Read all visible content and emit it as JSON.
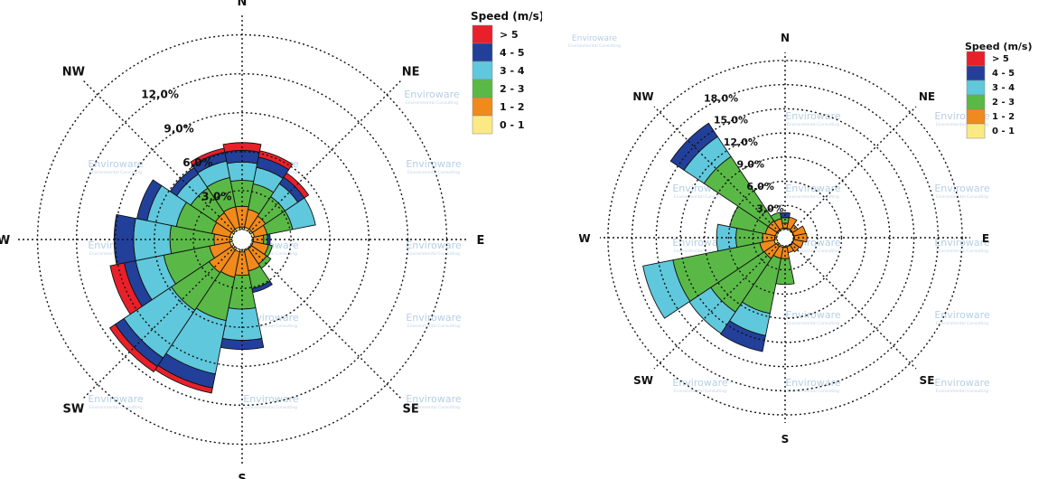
{
  "chart_data": [
    {
      "type": "wind-rose",
      "directions": [
        "N",
        "NNE",
        "NE",
        "ENE",
        "E",
        "ESE",
        "SE",
        "SSE",
        "S",
        "SSW",
        "SW",
        "WSW",
        "W",
        "WNW",
        "NW",
        "NNW"
      ],
      "direction_labels": [
        "N",
        "NE",
        "E",
        "SE",
        "S",
        "SW",
        "W",
        "NW"
      ],
      "ring_labels": [
        "3,0%",
        "6,0%",
        "9,0%",
        "12,0%"
      ],
      "ring_values": [
        3,
        6,
        9,
        12
      ],
      "r_max_percent": 16.5,
      "legend": {
        "title": "Speed (m/s)",
        "bins": [
          {
            "label": "> 5",
            "color": "#e8202a"
          },
          {
            "label": "4 - 5",
            "color": "#22409a"
          },
          {
            "label": "3 - 4",
            "color": "#5fc8dc"
          },
          {
            "label": "2 - 3",
            "color": "#5ab946"
          },
          {
            "label": "1 - 2",
            "color": "#f08a1c"
          },
          {
            "label": "0 - 1",
            "color": "#fbe983"
          }
        ]
      },
      "series": [
        {
          "name": "0 - 1",
          "values": [
            0.2,
            0.2,
            0.2,
            0.2,
            0.1,
            0.1,
            0.1,
            0.1,
            0.2,
            0.2,
            0.2,
            0.2,
            0.2,
            0.2,
            0.2,
            0.2
          ]
        },
        {
          "name": "1 - 2",
          "values": [
            1.6,
            1.4,
            1.2,
            1.0,
            0.8,
            1.2,
            1.4,
            1.6,
            1.8,
            2.0,
            2.1,
            1.6,
            1.2,
            1.4,
            1.5,
            1.6
          ]
        },
        {
          "name": "2 - 3",
          "values": [
            2.0,
            2.0,
            1.8,
            2.0,
            0.3,
            0.3,
            0.4,
            1.4,
            2.6,
            3.4,
            3.5,
            3.6,
            3.4,
            2.8,
            2.3,
            2.3
          ]
        },
        {
          "name": "3 - 4",
          "values": [
            1.4,
            1.3,
            1.2,
            1.8,
            0.0,
            0.0,
            0.0,
            0.0,
            2.4,
            4.2,
            4.4,
            2.2,
            2.8,
            2.3,
            1.3,
            1.3
          ]
        },
        {
          "name": "4 - 5",
          "values": [
            0.9,
            0.8,
            0.6,
            0.0,
            0.2,
            0.0,
            0.0,
            0.3,
            0.7,
            1.1,
            0.8,
            0.9,
            1.5,
            0.8,
            0.6,
            0.7
          ]
        },
        {
          "name": "> 5",
          "values": [
            0.6,
            0.5,
            0.4,
            0.0,
            0.0,
            0.0,
            0.0,
            0.0,
            0.0,
            0.4,
            0.5,
            1.1,
            0.0,
            0.0,
            0.0,
            0.3
          ]
        }
      ]
    },
    {
      "type": "wind-rose",
      "directions": [
        "N",
        "NNE",
        "NE",
        "ENE",
        "E",
        "ESE",
        "SE",
        "SSE",
        "S",
        "SSW",
        "SW",
        "WSW",
        "W",
        "WNW",
        "NW",
        "NNW"
      ],
      "direction_labels": [
        "N",
        "NE",
        "E",
        "SE",
        "S",
        "SW",
        "W",
        "NW"
      ],
      "ring_labels": [
        "3,0%",
        "6,0%",
        "9,0%",
        "12,0%",
        "15,0%",
        "18,0%"
      ],
      "ring_values": [
        3,
        6,
        9,
        12,
        15,
        18
      ],
      "r_max_percent": 22,
      "legend": {
        "title": "Speed (m/s)",
        "bins": [
          {
            "label": "> 5",
            "color": "#e8202a"
          },
          {
            "label": "4 - 5",
            "color": "#22409a"
          },
          {
            "label": "3 - 4",
            "color": "#5fc8dc"
          },
          {
            "label": "2 - 3",
            "color": "#5ab946"
          },
          {
            "label": "1 - 2",
            "color": "#f08a1c"
          },
          {
            "label": "0 - 1",
            "color": "#fbe983"
          }
        ]
      },
      "series": [
        {
          "name": "0 - 1",
          "values": [
            0.2,
            0.2,
            0.1,
            0.1,
            0.1,
            0.1,
            0.1,
            0.1,
            0.2,
            0.2,
            0.3,
            0.4,
            0.3,
            0.2,
            0.2,
            0.2
          ]
        },
        {
          "name": "1 - 2",
          "values": [
            0.6,
            1.4,
            0.8,
            1.5,
            1.6,
            1.2,
            1.0,
            0.8,
            1.4,
            1.4,
            1.8,
            1.8,
            1.5,
            1.3,
            1.3,
            1.2
          ]
        },
        {
          "name": "2 - 3",
          "values": [
            0.7,
            0.0,
            0.0,
            0.0,
            0.0,
            0.0,
            0.0,
            0.0,
            3.2,
            7.0,
            8.0,
            11.0,
            3.3,
            4.5,
            9.6,
            0.8
          ]
        },
        {
          "name": "3 - 4",
          "values": [
            0.0,
            0.0,
            0.0,
            0.0,
            0.0,
            0.0,
            0.0,
            0.0,
            0.0,
            2.8,
            3.2,
            3.8,
            2.4,
            0.0,
            3.0,
            0.0
          ]
        },
        {
          "name": "4 - 5",
          "values": [
            0.6,
            0.0,
            0.0,
            0.0,
            0.0,
            0.0,
            0.0,
            0.0,
            0.0,
            2.0,
            0.0,
            0.0,
            0.0,
            0.0,
            2.0,
            0.0
          ]
        },
        {
          "name": "> 5",
          "values": [
            0,
            0,
            0,
            0,
            0,
            0,
            0,
            0,
            0,
            0,
            0,
            0,
            0,
            0,
            0,
            0
          ]
        }
      ]
    }
  ],
  "watermark": {
    "brand": "Enviroware",
    "tagline": "Environmental Consulting"
  }
}
